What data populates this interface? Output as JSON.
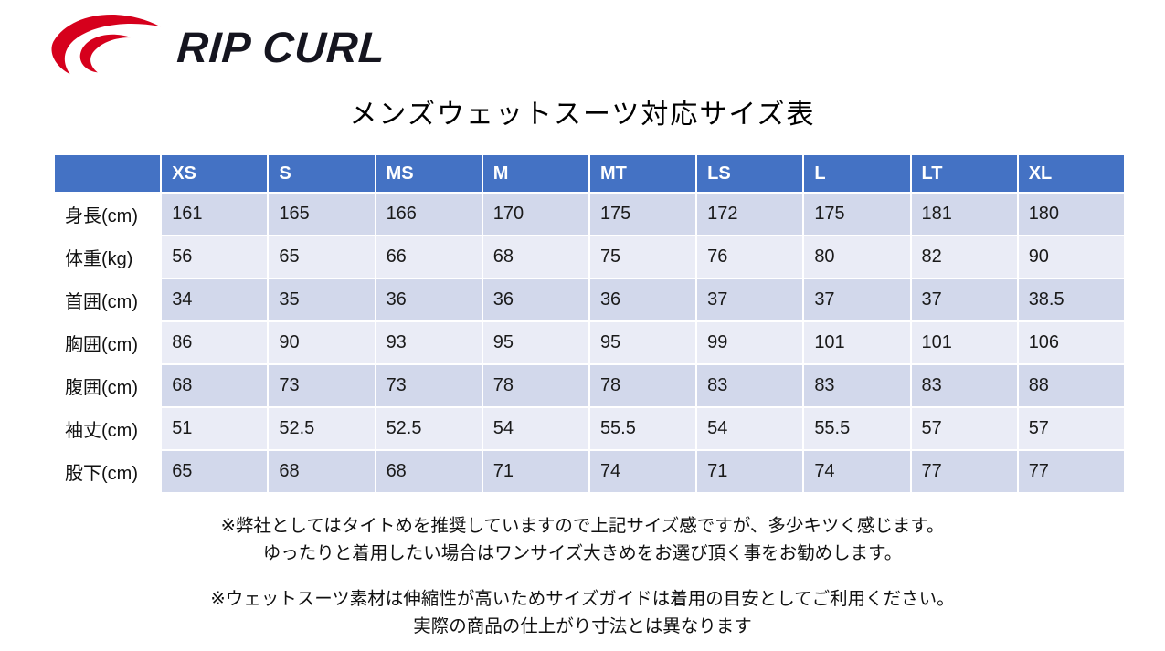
{
  "logo": {
    "wordmark": "RIP CURL",
    "icon": "wave-swoosh"
  },
  "title": "メンズウェットスーツ対応サイズ表",
  "table": {
    "corner": "",
    "columns": [
      "XS",
      "S",
      "MS",
      "M",
      "MT",
      "LS",
      "L",
      "LT",
      "XL"
    ],
    "rows": [
      {
        "label": "身長(cm)",
        "values": [
          "161",
          "165",
          "166",
          "170",
          "175",
          "172",
          "175",
          "181",
          "180"
        ]
      },
      {
        "label": "体重(kg)",
        "values": [
          "56",
          "65",
          "66",
          "68",
          "75",
          "76",
          "80",
          "82",
          "90"
        ]
      },
      {
        "label": "首囲(cm)",
        "values": [
          "34",
          "35",
          "36",
          "36",
          "36",
          "37",
          "37",
          "37",
          "38.5"
        ]
      },
      {
        "label": "胸囲(cm)",
        "values": [
          "86",
          "90",
          "93",
          "95",
          "95",
          "99",
          "101",
          "101",
          "106"
        ]
      },
      {
        "label": "腹囲(cm)",
        "values": [
          "68",
          "73",
          "73",
          "78",
          "78",
          "83",
          "83",
          "83",
          "88"
        ]
      },
      {
        "label": "袖丈(cm)",
        "values": [
          "51",
          "52.5",
          "52.5",
          "54",
          "55.5",
          "54",
          "55.5",
          "57",
          "57"
        ]
      },
      {
        "label": "股下(cm)",
        "values": [
          "65",
          "68",
          "68",
          "71",
          "74",
          "71",
          "74",
          "77",
          "77"
        ]
      }
    ]
  },
  "notes": [
    {
      "line1": "※弊社としてはタイトめを推奨していますので上記サイズ感ですが、多少キツく感じます。",
      "line2": "ゆったりと着用したい場合はワンサイズ大きめをお選び頂く事をお勧めします。"
    },
    {
      "line1": "※ウェットスーツ素材は伸縮性が高いためサイズガイドは着用の目安としてご利用ください。",
      "line2": "実際の商品の仕上がり寸法とは異なります"
    }
  ],
  "colors": {
    "header_bg": "#4472c4",
    "row_band_dark": "#d2d8eb",
    "row_band_light": "#eaecf6",
    "logo_red": "#d6001c",
    "logo_dark": "#15151f"
  }
}
